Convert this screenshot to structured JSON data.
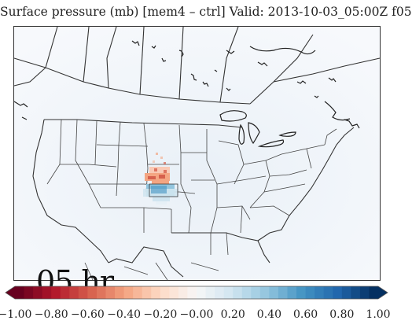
{
  "title": "Surface pressure (mb) [mem4 – ctrl] Valid: 2013-10-03_05:00Z f05",
  "hour_label": "05 hr",
  "colorbar": {
    "min": -1.0,
    "max": 1.0,
    "tick_values": [
      -1.0,
      -0.8,
      -0.6,
      -0.4,
      -0.2,
      0.0,
      0.2,
      0.4,
      0.6,
      0.8,
      1.0
    ],
    "tick_labels": [
      "−1.00",
      "−0.80",
      "−0.60",
      "−0.40",
      "−0.20",
      "−0.00",
      "0.20",
      "0.40",
      "0.60",
      "0.80",
      "1.00"
    ],
    "colors": [
      "#67001f",
      "#b2182b",
      "#d6604d",
      "#f4a582",
      "#fddbc7",
      "#f7f7f7",
      "#d1e5f0",
      "#92c5de",
      "#4393c3",
      "#2166ac",
      "#053061"
    ],
    "extend": "both"
  },
  "colors": {
    "positive_anomaly": "#4393c3",
    "negative_anomaly": "#d6604d",
    "map_background": "#f2f6fa",
    "boundary": "#333333"
  }
}
